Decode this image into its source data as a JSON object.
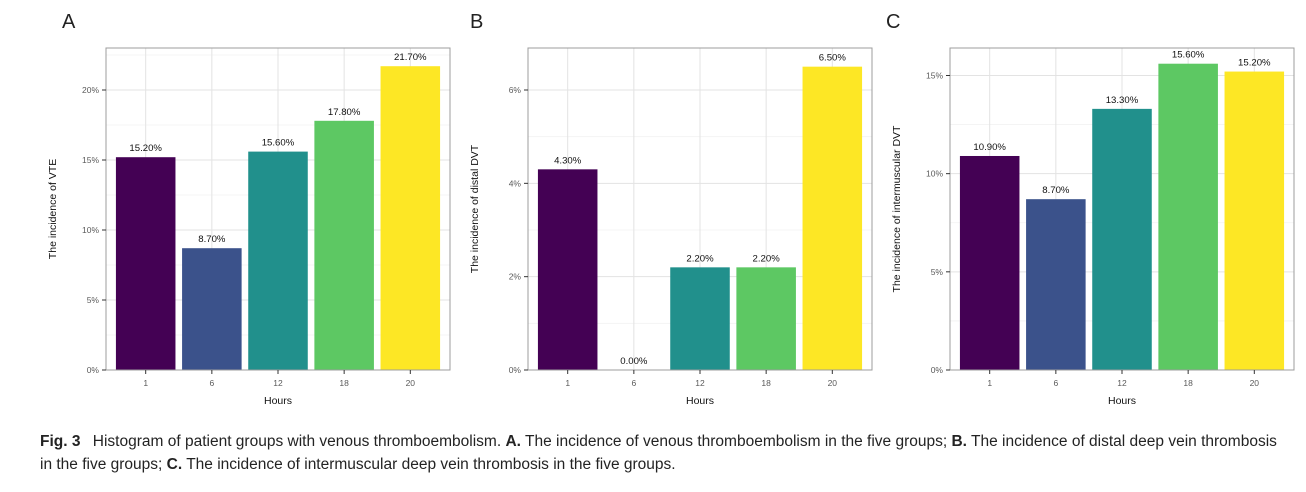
{
  "palette": [
    "#440154",
    "#3B528B",
    "#21908C",
    "#5DC863",
    "#FDE725"
  ],
  "chart_style": {
    "panel_background": "#ffffff",
    "grid_major_color": "#e3e3e3",
    "grid_minor_color": "#f2f2f2",
    "panel_border_color": "#9c9c9c",
    "tick_color": "#333333",
    "tick_label_color": "#5a5a5a",
    "axis_title_color": "#111111",
    "bar_label_color": "#111111"
  },
  "chart_data": [
    {
      "type": "bar",
      "panel_label": "A",
      "categories": [
        "1",
        "6",
        "12",
        "18",
        "20"
      ],
      "values": [
        15.2,
        8.7,
        15.6,
        17.8,
        21.7
      ],
      "bar_labels": [
        "15.20%",
        "8.70%",
        "15.60%",
        "17.80%",
        "21.70%"
      ],
      "xlabel": "Hours",
      "ylabel": "The incidence of VTE",
      "ylim": [
        0,
        23
      ],
      "yticks": [
        0,
        5,
        10,
        15,
        20
      ],
      "ytick_labels": [
        "0%",
        "5%",
        "10%",
        "15%",
        "20%"
      ],
      "legend": "none",
      "grid": "major+minor"
    },
    {
      "type": "bar",
      "panel_label": "B",
      "categories": [
        "1",
        "6",
        "12",
        "18",
        "20"
      ],
      "values": [
        4.3,
        0.0,
        2.2,
        2.2,
        6.5
      ],
      "bar_labels": [
        "4.30%",
        "0.00%",
        "2.20%",
        "2.20%",
        "6.50%"
      ],
      "xlabel": "Hours",
      "ylabel": "The incidence of distal DVT",
      "ylim": [
        0,
        6.9
      ],
      "yticks": [
        0,
        2,
        4,
        6
      ],
      "ytick_labels": [
        "0%",
        "2%",
        "4%",
        "6%"
      ],
      "legend": "none",
      "grid": "major+minor"
    },
    {
      "type": "bar",
      "panel_label": "C",
      "categories": [
        "1",
        "6",
        "12",
        "18",
        "20"
      ],
      "values": [
        10.9,
        8.7,
        13.3,
        15.6,
        15.2
      ],
      "bar_labels": [
        "10.90%",
        "8.70%",
        "13.30%",
        "15.60%",
        "15.20%"
      ],
      "xlabel": "Hours",
      "ylabel": "The incidence of intermuscular DVT",
      "ylim": [
        0,
        16.4
      ],
      "yticks": [
        0,
        5,
        10,
        15
      ],
      "ytick_labels": [
        "0%",
        "5%",
        "10%",
        "15%"
      ],
      "legend": "none",
      "grid": "major+minor"
    }
  ],
  "caption": {
    "fig_label": "Fig. 3",
    "intro": "Histogram of patient groups with venous thromboembolism.",
    "a_label": "A.",
    "a_text": "The incidence of venous thromboembolism in the five groups;",
    "b_label": "B.",
    "b_text": "The incidence of distal deep vein thrombosis in the five groups;",
    "c_label": "C.",
    "c_text": "The incidence of intermuscular deep vein thrombosis in the five groups."
  }
}
